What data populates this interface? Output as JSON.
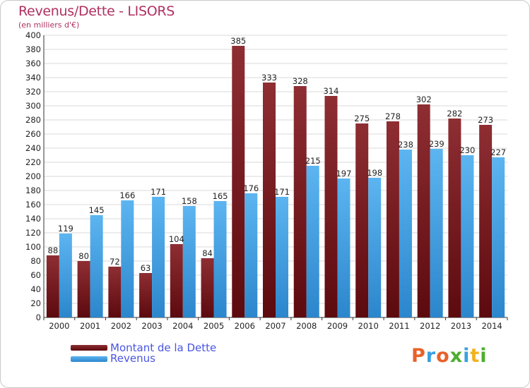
{
  "title": "Revenus/Dette - LISORS",
  "subtitle": "(en milliers d'€)",
  "legend": {
    "debt_label": "Montant de la Dette",
    "revenue_label": "Revenus"
  },
  "logo": {
    "text": "Proxiti",
    "colors": [
      "#e8622a",
      "#3aa0e0",
      "#e8622a",
      "#4cae2e",
      "#3aa0e0",
      "#f2b21c",
      "#4cae2e"
    ]
  },
  "colors": {
    "debt": "#7a1c22",
    "revenue": "#4aa6e8",
    "grid": "#d8d8d8"
  },
  "chart_data": {
    "type": "bar",
    "categories": [
      "2000",
      "2001",
      "2002",
      "2003",
      "2004",
      "2005",
      "2006",
      "2007",
      "2008",
      "2009",
      "2010",
      "2011",
      "2012",
      "2013",
      "2014"
    ],
    "series": [
      {
        "name": "Montant de la Dette",
        "values": [
          88,
          80,
          72,
          63,
          104,
          84,
          385,
          333,
          328,
          314,
          275,
          278,
          302,
          282,
          273
        ]
      },
      {
        "name": "Revenus",
        "values": [
          119,
          145,
          166,
          171,
          158,
          165,
          176,
          171,
          215,
          197,
          198,
          238,
          239,
          230,
          227
        ]
      }
    ],
    "ylim": [
      0,
      400
    ],
    "ytick_step": 20,
    "grid": true,
    "legend_position": "bottom-left"
  }
}
